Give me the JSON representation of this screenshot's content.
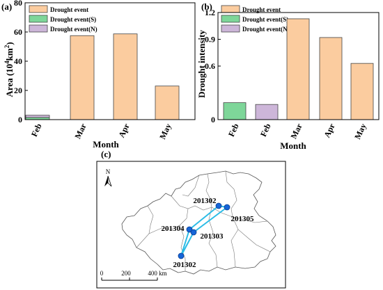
{
  "figure": {
    "colors": {
      "drought_event": "#fbcc9f",
      "drought_event_s": "#7ed699",
      "drought_event_n": "#cdb6d9",
      "bar_stroke": "#444444",
      "track": "#2bbce6",
      "point": "#1565d8"
    }
  },
  "chart_data": [
    {
      "panel": "(a)",
      "type": "bar",
      "categories": [
        "Feb",
        "Mar",
        "Apr",
        "May"
      ],
      "ylabel": "Area (10⁴km²)",
      "xlabel": "Month",
      "ylim": [
        0,
        80
      ],
      "yticks": [
        0,
        20,
        40,
        60,
        80
      ],
      "legend": [
        "Drought event",
        "Drought event(S)",
        "Drought event(N)"
      ],
      "legend_position": "top-left",
      "stacked": true,
      "series": [
        {
          "name": "Drought event(S)",
          "values": [
            1.5,
            0,
            0,
            0
          ]
        },
        {
          "name": "Drought event(N)",
          "values": [
            1.5,
            0,
            0,
            0
          ]
        },
        {
          "name": "Drought event",
          "values": [
            0,
            57.5,
            58.7,
            23
          ]
        }
      ]
    },
    {
      "panel": "(b)",
      "type": "bar",
      "categories": [
        "Feb",
        "Feb",
        "Mar",
        "Apr",
        "May"
      ],
      "ylabel": "Drought intensity",
      "xlabel": "Month",
      "ylim": [
        0,
        1.2
      ],
      "yticks": [
        "0",
        "0.6",
        "0.9",
        "1.2"
      ],
      "legend": [
        "Drought event",
        "Drought event(S)",
        "Drought event(N)"
      ],
      "legend_position": "top-left",
      "values": [
        0.19,
        0.17,
        1.13,
        0.92,
        0.63
      ],
      "series_of_bar": [
        "Drought event(S)",
        "Drought event(N)",
        "Drought event",
        "Drought event",
        "Drought event"
      ]
    },
    {
      "panel": "(c)",
      "type": "map",
      "north_label": "N",
      "scale_labels": [
        "0",
        "200",
        "400 km"
      ],
      "points": [
        {
          "label": "201302"
        },
        {
          "label": "201305"
        },
        {
          "label": "201304"
        },
        {
          "label": "201303"
        },
        {
          "label": "201302"
        }
      ]
    }
  ]
}
